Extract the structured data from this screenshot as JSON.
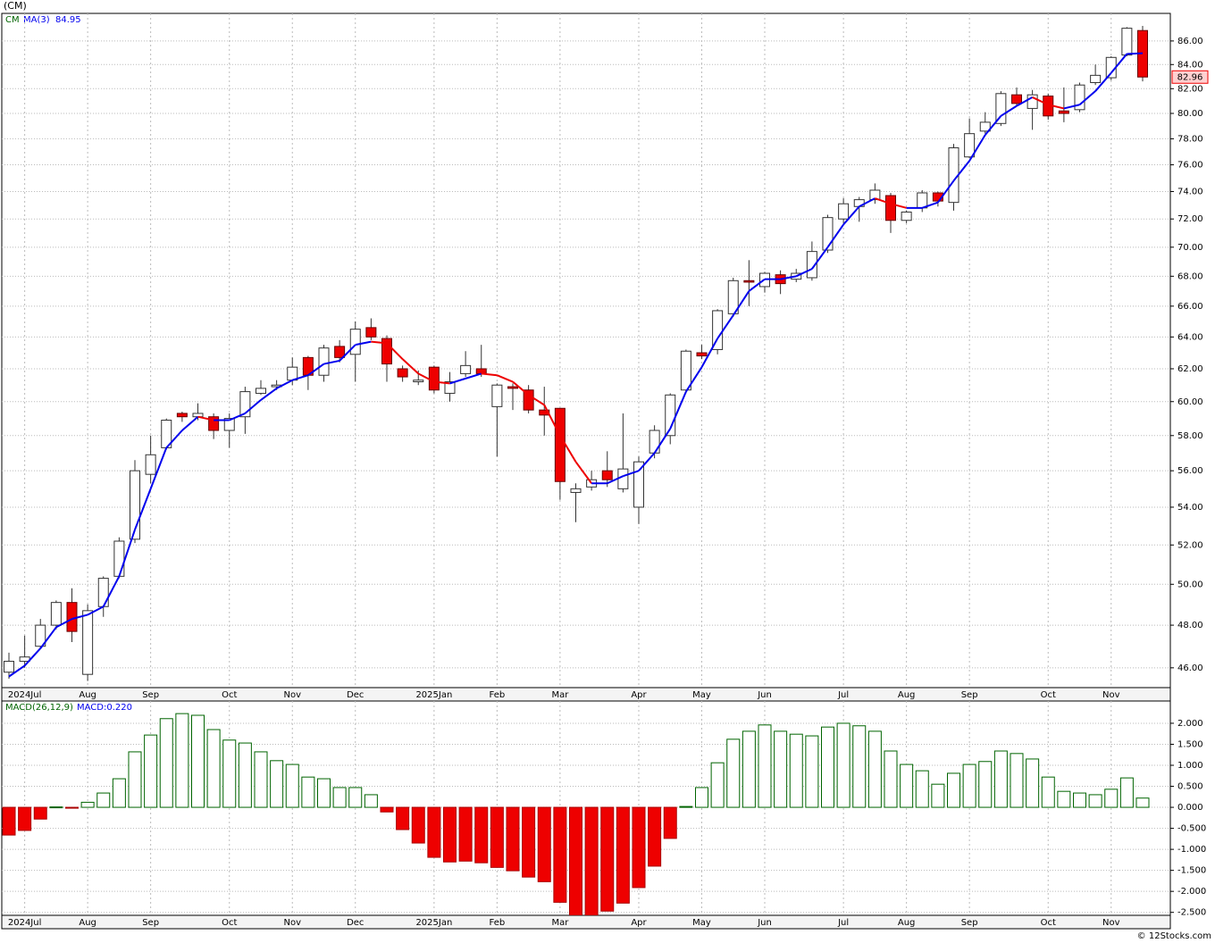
{
  "chart_data": [
    {
      "type": "candlestick",
      "title": "(CM)",
      "symbol": "CM",
      "open": [
        45.8,
        46.3,
        47.0,
        48.0,
        49.1,
        45.7,
        48.9,
        50.4,
        52.3,
        55.8,
        57.3,
        59.3,
        59.1,
        59.1,
        58.3,
        59.1,
        60.5,
        60.9,
        61.3,
        62.7,
        61.6,
        63.4,
        62.9,
        64.6,
        63.9,
        62.0,
        61.2,
        62.1,
        60.5,
        61.7,
        62.0,
        59.7,
        60.9,
        60.7,
        59.5,
        59.6,
        54.8,
        55.1,
        56.0,
        55.0,
        54.0,
        57.0,
        58.0,
        60.7,
        63.0,
        63.2,
        65.5,
        67.7,
        67.3,
        68.1,
        67.8,
        67.9,
        69.8,
        72.0,
        72.9,
        73.4,
        73.7,
        71.9,
        72.8,
        73.9,
        73.2,
        76.6,
        78.6,
        79.2,
        81.5,
        80.4,
        81.4,
        80.2,
        80.3,
        82.5,
        82.9,
        84.8,
        86.9
      ],
      "high": [
        46.7,
        47.5,
        48.3,
        49.2,
        49.8,
        49.0,
        50.4,
        52.4,
        56.6,
        58.0,
        59.0,
        59.4,
        59.9,
        59.3,
        59.3,
        60.9,
        61.3,
        61.3,
        62.7,
        62.8,
        63.5,
        63.8,
        65.0,
        65.2,
        64.1,
        62.2,
        61.9,
        62.2,
        61.8,
        63.1,
        63.5,
        61.1,
        61.1,
        61.0,
        60.9,
        59.6,
        55.3,
        56.0,
        57.1,
        59.3,
        56.8,
        58.6,
        60.5,
        63.2,
        63.5,
        65.8,
        67.9,
        69.1,
        68.3,
        68.4,
        68.5,
        70.4,
        72.3,
        73.5,
        73.6,
        74.6,
        73.9,
        72.6,
        74.1,
        74.0,
        77.6,
        79.6,
        80.1,
        81.8,
        82.1,
        81.9,
        81.6,
        82.1,
        82.5,
        84.0,
        84.7,
        87.2,
        87.3
      ],
      "low": [
        45.5,
        46.0,
        46.9,
        47.8,
        47.2,
        45.4,
        48.4,
        50.3,
        52.1,
        55.3,
        57.2,
        58.8,
        58.9,
        57.8,
        57.3,
        58.1,
        60.4,
        60.7,
        61.0,
        60.7,
        61.2,
        62.4,
        61.2,
        63.8,
        61.2,
        61.2,
        61.0,
        60.5,
        60.0,
        61.5,
        61.5,
        56.8,
        59.5,
        59.3,
        58.0,
        54.4,
        53.2,
        54.9,
        55.1,
        54.8,
        53.1,
        56.7,
        57.5,
        60.5,
        62.6,
        62.9,
        65.3,
        66.0,
        66.9,
        66.8,
        67.6,
        67.7,
        69.6,
        71.7,
        71.8,
        73.1,
        71.0,
        71.7,
        72.5,
        72.9,
        72.6,
        76.5,
        78.4,
        79.0,
        80.6,
        78.7,
        79.5,
        79.3,
        80.1,
        82.3,
        82.7,
        84.7,
        82.6
      ],
      "close": [
        46.3,
        46.5,
        48.0,
        49.1,
        47.7,
        48.7,
        50.3,
        52.2,
        56.0,
        56.9,
        58.9,
        59.1,
        59.3,
        58.3,
        59.0,
        60.6,
        60.8,
        61.0,
        62.1,
        61.6,
        63.3,
        62.7,
        64.5,
        64.0,
        62.3,
        61.5,
        61.3,
        60.7,
        61.2,
        62.2,
        61.7,
        61.0,
        60.8,
        59.5,
        59.2,
        55.4,
        55.0,
        55.5,
        55.5,
        56.1,
        56.5,
        58.3,
        60.4,
        63.1,
        62.8,
        65.7,
        67.7,
        67.6,
        68.2,
        67.5,
        68.2,
        69.7,
        72.1,
        73.1,
        73.4,
        74.1,
        71.9,
        72.5,
        73.9,
        73.3,
        77.3,
        78.4,
        79.3,
        81.6,
        80.8,
        81.5,
        79.8,
        80.0,
        82.3,
        83.1,
        84.6,
        87.1,
        82.96
      ],
      "ma": {
        "name": "MA(3)",
        "value": 84.95,
        "up_color": "#0000ee",
        "down_color": "#ee0000",
        "values": [
          45.6,
          46.1,
          46.9,
          47.9,
          48.3,
          48.5,
          48.9,
          50.4,
          52.8,
          55.0,
          57.3,
          58.3,
          59.1,
          58.9,
          58.9,
          59.3,
          60.1,
          60.8,
          61.3,
          61.6,
          62.3,
          62.5,
          63.5,
          63.7,
          63.6,
          62.6,
          61.7,
          61.2,
          61.1,
          61.4,
          61.7,
          61.6,
          61.2,
          60.4,
          59.8,
          58.0,
          56.5,
          55.3,
          55.3,
          55.7,
          56.0,
          57.0,
          58.4,
          60.6,
          62.1,
          63.9,
          65.4,
          67.0,
          67.8,
          67.8,
          68.0,
          68.5,
          70.0,
          71.6,
          72.9,
          73.5,
          73.1,
          72.8,
          72.8,
          73.2,
          74.8,
          76.3,
          78.3,
          79.8,
          80.6,
          81.3,
          80.7,
          80.4,
          80.7,
          81.8,
          83.3,
          84.9,
          84.95
        ]
      },
      "last_price": 82.96,
      "up_color": "#ffffff",
      "down_color": "#ee0000",
      "log_scale": true,
      "grid": true,
      "ylim": [
        45.1,
        88.4
      ],
      "yticks": [
        {
          "value": 46,
          "label": "46.00"
        },
        {
          "value": 48,
          "label": "48.00"
        },
        {
          "value": 50,
          "label": "50.00"
        },
        {
          "value": 52,
          "label": "52.00"
        },
        {
          "value": 54,
          "label": "54.00"
        },
        {
          "value": 56,
          "label": "56.00"
        },
        {
          "value": 58,
          "label": "58.00"
        },
        {
          "value": 60,
          "label": "60.00"
        },
        {
          "value": 62,
          "label": "62.00"
        },
        {
          "value": 64,
          "label": "64.00"
        },
        {
          "value": 66,
          "label": "66.00"
        },
        {
          "value": 68,
          "label": "68.00"
        },
        {
          "value": 70,
          "label": "70.00"
        },
        {
          "value": 72,
          "label": "72.00"
        },
        {
          "value": 74,
          "label": "74.00"
        },
        {
          "value": 76,
          "label": "76.00"
        },
        {
          "value": 78,
          "label": "78.00"
        },
        {
          "value": 80,
          "label": "80.00"
        },
        {
          "value": 82,
          "label": "82.00"
        },
        {
          "value": 84,
          "label": "84.00"
        },
        {
          "value": 86,
          "label": "86.00"
        }
      ],
      "xticks": [
        {
          "value": 1,
          "label": "2024Jul"
        },
        {
          "value": 5,
          "label": "Aug"
        },
        {
          "value": 9,
          "label": "Sep"
        },
        {
          "value": 14,
          "label": "Oct"
        },
        {
          "value": 18,
          "label": "Nov"
        },
        {
          "value": 22,
          "label": "Dec"
        },
        {
          "value": 27,
          "label": "2025Jan"
        },
        {
          "value": 31,
          "label": "Feb"
        },
        {
          "value": 35,
          "label": "Mar"
        },
        {
          "value": 40,
          "label": "Apr"
        },
        {
          "value": 44,
          "label": "May"
        },
        {
          "value": 48,
          "label": "Jun"
        },
        {
          "value": 53,
          "label": "Jul"
        },
        {
          "value": 57,
          "label": "Aug"
        },
        {
          "value": 61,
          "label": "Sep"
        },
        {
          "value": 66,
          "label": "Oct"
        },
        {
          "value": 70,
          "label": "Nov"
        }
      ]
    },
    {
      "type": "bar",
      "title": "MACD(26,12,9)",
      "last_label": "MACD:0.220",
      "pos_color": "#ffffff",
      "neg_color": "#ee0000",
      "values": [
        -0.66,
        -0.55,
        -0.28,
        0.01,
        -0.02,
        0.12,
        0.34,
        0.68,
        1.32,
        1.72,
        2.11,
        2.23,
        2.19,
        1.85,
        1.6,
        1.53,
        1.32,
        1.11,
        1.02,
        0.72,
        0.68,
        0.47,
        0.47,
        0.3,
        -0.11,
        -0.53,
        -0.85,
        -1.19,
        -1.3,
        -1.28,
        -1.32,
        -1.43,
        -1.51,
        -1.66,
        -1.77,
        -2.26,
        -2.57,
        -2.57,
        -2.47,
        -2.28,
        -1.91,
        -1.4,
        -0.74,
        0.02,
        0.47,
        1.06,
        1.62,
        1.81,
        1.96,
        1.81,
        1.74,
        1.7,
        1.91,
        2.0,
        1.94,
        1.81,
        1.34,
        1.02,
        0.87,
        0.55,
        0.81,
        1.02,
        1.09,
        1.34,
        1.28,
        1.15,
        0.72,
        0.38,
        0.34,
        0.3,
        0.43,
        0.7,
        0.22
      ],
      "ylim": [
        -2.57,
        2.53
      ],
      "yticks": [
        {
          "value": -2.5,
          "label": "-2.500"
        },
        {
          "value": -2,
          "label": "-2.000"
        },
        {
          "value": -1.5,
          "label": "-1.500"
        },
        {
          "value": -1,
          "label": "-1.000"
        },
        {
          "value": -0.5,
          "label": "-0.500"
        },
        {
          "value": 0,
          "label": "0.000"
        },
        {
          "value": 0.5,
          "label": "0.500"
        },
        {
          "value": 1,
          "label": "1.000"
        },
        {
          "value": 1.5,
          "label": "1.500"
        },
        {
          "value": 2,
          "label": "2.000"
        }
      ]
    }
  ],
  "footer": "© 12Stocks.com"
}
